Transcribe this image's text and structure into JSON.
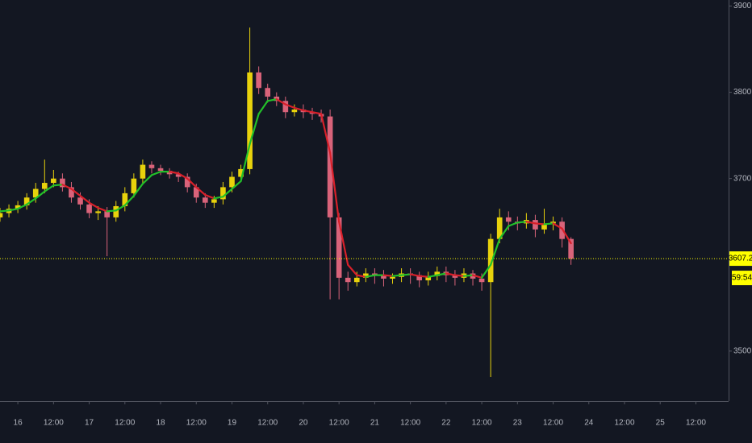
{
  "chart_data": {
    "type": "candlestick",
    "x": [
      -6,
      -3,
      0,
      3,
      6,
      9,
      12,
      15,
      18,
      21,
      24,
      27,
      30,
      33,
      36,
      39,
      42,
      45,
      48,
      51,
      54,
      57,
      60,
      63,
      66,
      69,
      72,
      75,
      78,
      81,
      84,
      87,
      90,
      93,
      96,
      99,
      102,
      105,
      108,
      111,
      114,
      117,
      120,
      123,
      126,
      129,
      132,
      135,
      138,
      141,
      144,
      147,
      150,
      153,
      156,
      159,
      162,
      165,
      168,
      171,
      174,
      177,
      180,
      183,
      186
    ],
    "open": [
      3655,
      3660,
      3665,
      3669,
      3678,
      3688,
      3695,
      3700,
      3690,
      3678,
      3670,
      3660,
      3662,
      3655,
      3668,
      3683,
      3700,
      3716,
      3712,
      3709,
      3705,
      3702,
      3690,
      3678,
      3672,
      3676,
      3690,
      3702,
      3711,
      3823,
      3805,
      3795,
      3790,
      3777,
      3780,
      3777,
      3775,
      3772,
      3655,
      3585,
      3580,
      3585,
      3590,
      3588,
      3584,
      3586,
      3590,
      3588,
      3582,
      3587,
      3592,
      3588,
      3585,
      3590,
      3584,
      3580,
      3630,
      3655,
      3650,
      3648,
      3652,
      3641,
      3648,
      3650,
      3630
    ],
    "high": [
      3666,
      3670,
      3674,
      3683,
      3695,
      3722,
      3710,
      3706,
      3696,
      3684,
      3676,
      3668,
      3667,
      3674,
      3690,
      3706,
      3722,
      3720,
      3716,
      3712,
      3708,
      3706,
      3694,
      3683,
      3680,
      3696,
      3708,
      3716,
      3875,
      3830,
      3810,
      3800,
      3795,
      3786,
      3786,
      3782,
      3780,
      3780,
      3660,
      3592,
      3592,
      3596,
      3596,
      3594,
      3590,
      3596,
      3596,
      3592,
      3592,
      3598,
      3598,
      3594,
      3596,
      3594,
      3590,
      3636,
      3665,
      3662,
      3656,
      3660,
      3658,
      3665,
      3656,
      3655,
      3632
    ],
    "low": [
      3650,
      3655,
      3660,
      3664,
      3672,
      3683,
      3690,
      3685,
      3672,
      3664,
      3654,
      3652,
      3610,
      3650,
      3662,
      3678,
      3695,
      3706,
      3704,
      3700,
      3696,
      3684,
      3672,
      3666,
      3666,
      3670,
      3684,
      3698,
      3705,
      3798,
      3788,
      3784,
      3770,
      3772,
      3770,
      3768,
      3765,
      3560,
      3560,
      3570,
      3575,
      3580,
      3578,
      3575,
      3578,
      3580,
      3578,
      3574,
      3576,
      3582,
      3580,
      3576,
      3580,
      3576,
      3570,
      3470,
      3625,
      3640,
      3640,
      3642,
      3632,
      3636,
      3640,
      3620,
      3600
    ],
    "close": [
      3660,
      3665,
      3669,
      3678,
      3688,
      3695,
      3700,
      3690,
      3678,
      3670,
      3660,
      3662,
      3655,
      3668,
      3683,
      3700,
      3716,
      3712,
      3709,
      3705,
      3702,
      3690,
      3678,
      3672,
      3676,
      3690,
      3702,
      3711,
      3823,
      3805,
      3795,
      3790,
      3777,
      3780,
      3777,
      3775,
      3772,
      3655,
      3585,
      3580,
      3585,
      3590,
      3588,
      3584,
      3586,
      3590,
      3588,
      3582,
      3587,
      3592,
      3588,
      3585,
      3590,
      3584,
      3580,
      3630,
      3655,
      3650,
      3648,
      3652,
      3641,
      3648,
      3650,
      3630,
      3607
    ],
    "up_color": "#e8d20c",
    "down_color": "#d9637a",
    "ma": {
      "values": [
        3662,
        3663,
        3665,
        3670,
        3677,
        3685,
        3692,
        3693,
        3688,
        3680,
        3672,
        3666,
        3662,
        3663,
        3669,
        3680,
        3694,
        3704,
        3708,
        3708,
        3706,
        3700,
        3690,
        3681,
        3677,
        3679,
        3688,
        3697,
        3740,
        3775,
        3790,
        3792,
        3786,
        3782,
        3779,
        3777,
        3775,
        3730,
        3650,
        3600,
        3588,
        3586,
        3588,
        3588,
        3587,
        3588,
        3589,
        3587,
        3586,
        3588,
        3590,
        3588,
        3587,
        3588,
        3585,
        3600,
        3630,
        3645,
        3649,
        3650,
        3648,
        3647,
        3648,
        3642,
        3625
      ],
      "rising_color": "#22c02a",
      "falling_color": "#d8202a"
    },
    "last_price": {
      "value": 3607.2,
      "label": "3607.2",
      "color": "#ffff00"
    },
    "countdown": "59:54",
    "xlim": [
      -6,
      239
    ],
    "ylim": [
      3442,
      3907
    ],
    "xticks": [
      {
        "value": 0,
        "label": "16"
      },
      {
        "value": 12,
        "label": "12:00"
      },
      {
        "value": 24,
        "label": "17"
      },
      {
        "value": 36,
        "label": "12:00"
      },
      {
        "value": 48,
        "label": "18"
      },
      {
        "value": 60,
        "label": "12:00"
      },
      {
        "value": 72,
        "label": "19"
      },
      {
        "value": 84,
        "label": "12:00"
      },
      {
        "value": 96,
        "label": "20"
      },
      {
        "value": 108,
        "label": "12:00"
      },
      {
        "value": 120,
        "label": "21"
      },
      {
        "value": 132,
        "label": "12:00"
      },
      {
        "value": 144,
        "label": "22"
      },
      {
        "value": 156,
        "label": "12:00"
      },
      {
        "value": 168,
        "label": "23"
      },
      {
        "value": 180,
        "label": "12:00"
      },
      {
        "value": 192,
        "label": "24"
      },
      {
        "value": 204,
        "label": "12:00"
      },
      {
        "value": 216,
        "label": "25"
      },
      {
        "value": 228,
        "label": "12:00"
      }
    ],
    "yticks": [
      {
        "value": 3500,
        "label": "3500.0"
      },
      {
        "value": 3700,
        "label": "3700.0"
      },
      {
        "value": 3800,
        "label": "3800.0"
      },
      {
        "value": 3900,
        "label": "3900.0"
      }
    ]
  }
}
